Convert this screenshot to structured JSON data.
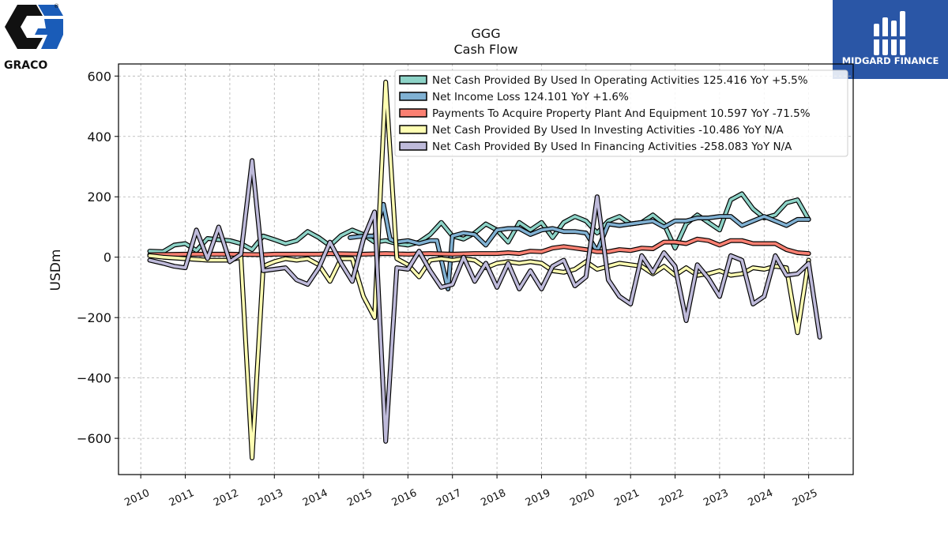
{
  "brand": {
    "left_logo_text": "GRACO",
    "right_logo_text": "MIDGARD FINANCE"
  },
  "chart_data": {
    "type": "line",
    "title": "GGG",
    "subtitle": "Cash Flow",
    "ylabel": "USDm",
    "xlabel": "",
    "ylim": [
      -720,
      640
    ],
    "xlim": [
      2009.5,
      2026.0
    ],
    "grid": true,
    "legend_position": "top-right",
    "x_ticks": [
      2010,
      2011,
      2012,
      2013,
      2014,
      2015,
      2016,
      2017,
      2018,
      2019,
      2020,
      2021,
      2022,
      2023,
      2024,
      2025
    ],
    "x_tick_labels": [
      "2010",
      "2011",
      "2012",
      "2013",
      "2014",
      "2015",
      "2016",
      "2017",
      "2018",
      "2019",
      "2020",
      "2021",
      "2022",
      "2023",
      "2024",
      "2025"
    ],
    "y_ticks": [
      600,
      400,
      200,
      0,
      -200,
      -400,
      -600
    ],
    "y_tick_labels": [
      "600",
      "400",
      "200",
      "0",
      "−200",
      "−400",
      "−600"
    ],
    "series": [
      {
        "name": "Net Cash Provided By Used In Operating Activities",
        "legend_text": "Net Cash Provided By Used In Operating Activities  125.416 YoY +5.5%",
        "color": "#8dd3c7",
        "points": [
          [
            2010.2,
            20
          ],
          [
            2010.5,
            18
          ],
          [
            2010.75,
            40
          ],
          [
            2011.0,
            45
          ],
          [
            2011.25,
            22
          ],
          [
            2011.5,
            62
          ],
          [
            2011.75,
            58
          ],
          [
            2012.0,
            55
          ],
          [
            2012.25,
            45
          ],
          [
            2012.5,
            25
          ],
          [
            2012.75,
            70
          ],
          [
            2013.0,
            58
          ],
          [
            2013.25,
            45
          ],
          [
            2013.5,
            55
          ],
          [
            2013.75,
            85
          ],
          [
            2014.0,
            65
          ],
          [
            2014.25,
            38
          ],
          [
            2014.5,
            72
          ],
          [
            2014.75,
            90
          ],
          [
            2015.0,
            75
          ],
          [
            2015.25,
            50
          ],
          [
            2015.5,
            55
          ],
          [
            2015.75,
            45
          ],
          [
            2016.0,
            40
          ],
          [
            2016.25,
            50
          ],
          [
            2016.5,
            75
          ],
          [
            2016.75,
            115
          ],
          [
            2017.0,
            70
          ],
          [
            2017.25,
            60
          ],
          [
            2017.5,
            80
          ],
          [
            2017.75,
            110
          ],
          [
            2018.0,
            90
          ],
          [
            2018.25,
            50
          ],
          [
            2018.5,
            115
          ],
          [
            2018.75,
            90
          ],
          [
            2019.0,
            115
          ],
          [
            2019.25,
            65
          ],
          [
            2019.5,
            115
          ],
          [
            2019.75,
            135
          ],
          [
            2020.0,
            120
          ],
          [
            2020.25,
            80
          ],
          [
            2020.5,
            120
          ],
          [
            2020.75,
            135
          ],
          [
            2021.0,
            110
          ],
          [
            2021.25,
            115
          ],
          [
            2021.5,
            140
          ],
          [
            2021.75,
            110
          ],
          [
            2022.0,
            30
          ],
          [
            2022.25,
            110
          ],
          [
            2022.5,
            140
          ],
          [
            2022.75,
            115
          ],
          [
            2023.0,
            90
          ],
          [
            2023.25,
            190
          ],
          [
            2023.5,
            210
          ],
          [
            2023.75,
            160
          ],
          [
            2024.0,
            130
          ],
          [
            2024.25,
            140
          ],
          [
            2024.5,
            180
          ],
          [
            2024.75,
            190
          ],
          [
            2025.0,
            125
          ]
        ]
      },
      {
        "name": "Net Income Loss",
        "legend_text": "Net Income Loss  124.101 YoY +1.6%",
        "color": "#80b1d3",
        "points": [
          [
            2014.7,
            65
          ],
          [
            2015.0,
            70
          ],
          [
            2015.25,
            70
          ],
          [
            2015.45,
            175
          ],
          [
            2015.6,
            60
          ],
          [
            2015.75,
            50
          ],
          [
            2016.0,
            55
          ],
          [
            2016.25,
            45
          ],
          [
            2016.5,
            55
          ],
          [
            2016.65,
            55
          ],
          [
            2016.9,
            -105
          ],
          [
            2017.0,
            70
          ],
          [
            2017.25,
            80
          ],
          [
            2017.5,
            75
          ],
          [
            2017.75,
            40
          ],
          [
            2018.0,
            90
          ],
          [
            2018.25,
            95
          ],
          [
            2018.5,
            95
          ],
          [
            2018.75,
            75
          ],
          [
            2019.0,
            90
          ],
          [
            2019.25,
            95
          ],
          [
            2019.5,
            85
          ],
          [
            2019.75,
            85
          ],
          [
            2020.0,
            80
          ],
          [
            2020.25,
            20
          ],
          [
            2020.5,
            110
          ],
          [
            2020.75,
            105
          ],
          [
            2021.0,
            110
          ],
          [
            2021.25,
            115
          ],
          [
            2021.5,
            120
          ],
          [
            2021.75,
            100
          ],
          [
            2022.0,
            120
          ],
          [
            2022.25,
            120
          ],
          [
            2022.5,
            130
          ],
          [
            2022.75,
            130
          ],
          [
            2023.0,
            135
          ],
          [
            2023.25,
            135
          ],
          [
            2023.5,
            105
          ],
          [
            2023.75,
            120
          ],
          [
            2024.0,
            135
          ],
          [
            2024.25,
            120
          ],
          [
            2024.5,
            105
          ],
          [
            2024.75,
            125
          ],
          [
            2025.0,
            125
          ]
        ]
      },
      {
        "name": "Payments To Acquire Property Plant And Equipment",
        "legend_text": "Payments To Acquire Property Plant And Equipment  10.597 YoY -71.5%",
        "color": "#fb8072",
        "points": [
          [
            2010.2,
            8
          ],
          [
            2011.0,
            10
          ],
          [
            2012.0,
            10
          ],
          [
            2012.75,
            8
          ],
          [
            2013.0,
            10
          ],
          [
            2014.0,
            10
          ],
          [
            2014.25,
            12
          ],
          [
            2015.0,
            10
          ],
          [
            2015.5,
            12
          ],
          [
            2016.0,
            10
          ],
          [
            2016.5,
            12
          ],
          [
            2017.0,
            10
          ],
          [
            2017.5,
            12
          ],
          [
            2018.0,
            12
          ],
          [
            2018.25,
            15
          ],
          [
            2018.5,
            12
          ],
          [
            2018.75,
            20
          ],
          [
            2019.0,
            18
          ],
          [
            2019.25,
            30
          ],
          [
            2019.5,
            35
          ],
          [
            2019.75,
            30
          ],
          [
            2020.0,
            25
          ],
          [
            2020.25,
            18
          ],
          [
            2020.5,
            18
          ],
          [
            2020.75,
            25
          ],
          [
            2021.0,
            22
          ],
          [
            2021.25,
            30
          ],
          [
            2021.5,
            28
          ],
          [
            2021.75,
            50
          ],
          [
            2022.0,
            50
          ],
          [
            2022.25,
            45
          ],
          [
            2022.5,
            60
          ],
          [
            2022.75,
            55
          ],
          [
            2023.0,
            40
          ],
          [
            2023.25,
            55
          ],
          [
            2023.5,
            55
          ],
          [
            2023.75,
            45
          ],
          [
            2024.0,
            45
          ],
          [
            2024.25,
            45
          ],
          [
            2024.5,
            25
          ],
          [
            2024.75,
            15
          ],
          [
            2025.0,
            12
          ]
        ]
      },
      {
        "name": "Net Cash Provided By Used In Investing Activities",
        "legend_text": "Net Cash Provided By Used In Investing Activities  -10.486 YoY N/A",
        "color": "#ffffb3",
        "points": [
          [
            2010.2,
            5
          ],
          [
            2010.5,
            0
          ],
          [
            2011.0,
            -5
          ],
          [
            2011.5,
            -10
          ],
          [
            2012.0,
            -10
          ],
          [
            2012.25,
            0
          ],
          [
            2012.5,
            -665
          ],
          [
            2012.75,
            -30
          ],
          [
            2013.0,
            -15
          ],
          [
            2013.25,
            -5
          ],
          [
            2013.5,
            -10
          ],
          [
            2013.75,
            -5
          ],
          [
            2014.0,
            -25
          ],
          [
            2014.25,
            -80
          ],
          [
            2014.5,
            -5
          ],
          [
            2014.75,
            -5
          ],
          [
            2015.0,
            -130
          ],
          [
            2015.25,
            -200
          ],
          [
            2015.5,
            580
          ],
          [
            2015.75,
            -5
          ],
          [
            2016.0,
            -25
          ],
          [
            2016.25,
            -65
          ],
          [
            2016.5,
            -10
          ],
          [
            2016.75,
            -5
          ],
          [
            2017.0,
            -10
          ],
          [
            2017.25,
            -5
          ],
          [
            2017.5,
            -10
          ],
          [
            2017.75,
            -35
          ],
          [
            2018.0,
            -20
          ],
          [
            2018.25,
            -15
          ],
          [
            2018.5,
            -20
          ],
          [
            2018.75,
            -15
          ],
          [
            2019.0,
            -20
          ],
          [
            2019.25,
            -45
          ],
          [
            2019.5,
            -50
          ],
          [
            2019.75,
            -40
          ],
          [
            2020.0,
            -15
          ],
          [
            2020.25,
            -40
          ],
          [
            2020.5,
            -30
          ],
          [
            2020.75,
            -20
          ],
          [
            2021.0,
            -25
          ],
          [
            2021.25,
            -30
          ],
          [
            2021.5,
            -55
          ],
          [
            2021.75,
            -30
          ],
          [
            2022.0,
            -60
          ],
          [
            2022.25,
            -35
          ],
          [
            2022.5,
            -60
          ],
          [
            2022.75,
            -55
          ],
          [
            2023.0,
            -45
          ],
          [
            2023.25,
            -60
          ],
          [
            2023.5,
            -55
          ],
          [
            2023.75,
            -35
          ],
          [
            2024.0,
            -40
          ],
          [
            2024.25,
            -30
          ],
          [
            2024.5,
            -35
          ],
          [
            2024.75,
            -250
          ],
          [
            2025.0,
            -10
          ]
        ]
      },
      {
        "name": "Net Cash Provided By Used In Financing Activities",
        "legend_text": "Net Cash Provided By Used In Financing Activities  -258.083 YoY N/A",
        "color": "#bebada",
        "points": [
          [
            2010.2,
            -10
          ],
          [
            2010.5,
            -20
          ],
          [
            2010.75,
            -30
          ],
          [
            2011.0,
            -35
          ],
          [
            2011.25,
            90
          ],
          [
            2011.5,
            -5
          ],
          [
            2011.75,
            100
          ],
          [
            2012.0,
            -15
          ],
          [
            2012.25,
            10
          ],
          [
            2012.5,
            320
          ],
          [
            2012.75,
            -45
          ],
          [
            2013.0,
            -40
          ],
          [
            2013.25,
            -35
          ],
          [
            2013.5,
            -75
          ],
          [
            2013.75,
            -90
          ],
          [
            2014.0,
            -35
          ],
          [
            2014.25,
            50
          ],
          [
            2014.5,
            -20
          ],
          [
            2014.75,
            -80
          ],
          [
            2015.0,
            60
          ],
          [
            2015.25,
            150
          ],
          [
            2015.5,
            -610
          ],
          [
            2015.75,
            -35
          ],
          [
            2016.0,
            -40
          ],
          [
            2016.25,
            20
          ],
          [
            2016.5,
            -45
          ],
          [
            2016.75,
            -100
          ],
          [
            2017.0,
            -90
          ],
          [
            2017.25,
            0
          ],
          [
            2017.5,
            -80
          ],
          [
            2017.75,
            -20
          ],
          [
            2018.0,
            -100
          ],
          [
            2018.25,
            -20
          ],
          [
            2018.5,
            -105
          ],
          [
            2018.75,
            -45
          ],
          [
            2019.0,
            -105
          ],
          [
            2019.25,
            -30
          ],
          [
            2019.5,
            -10
          ],
          [
            2019.75,
            -95
          ],
          [
            2020.0,
            -65
          ],
          [
            2020.25,
            200
          ],
          [
            2020.5,
            -75
          ],
          [
            2020.75,
            -130
          ],
          [
            2021.0,
            -155
          ],
          [
            2021.25,
            5
          ],
          [
            2021.5,
            -50
          ],
          [
            2021.75,
            15
          ],
          [
            2022.0,
            -30
          ],
          [
            2022.25,
            -210
          ],
          [
            2022.5,
            -25
          ],
          [
            2022.75,
            -70
          ],
          [
            2023.0,
            -130
          ],
          [
            2023.25,
            5
          ],
          [
            2023.5,
            -10
          ],
          [
            2023.75,
            -155
          ],
          [
            2024.0,
            -130
          ],
          [
            2024.25,
            5
          ],
          [
            2024.5,
            -60
          ],
          [
            2024.75,
            -55
          ],
          [
            2025.0,
            -20
          ],
          [
            2025.25,
            -265
          ]
        ]
      }
    ]
  }
}
